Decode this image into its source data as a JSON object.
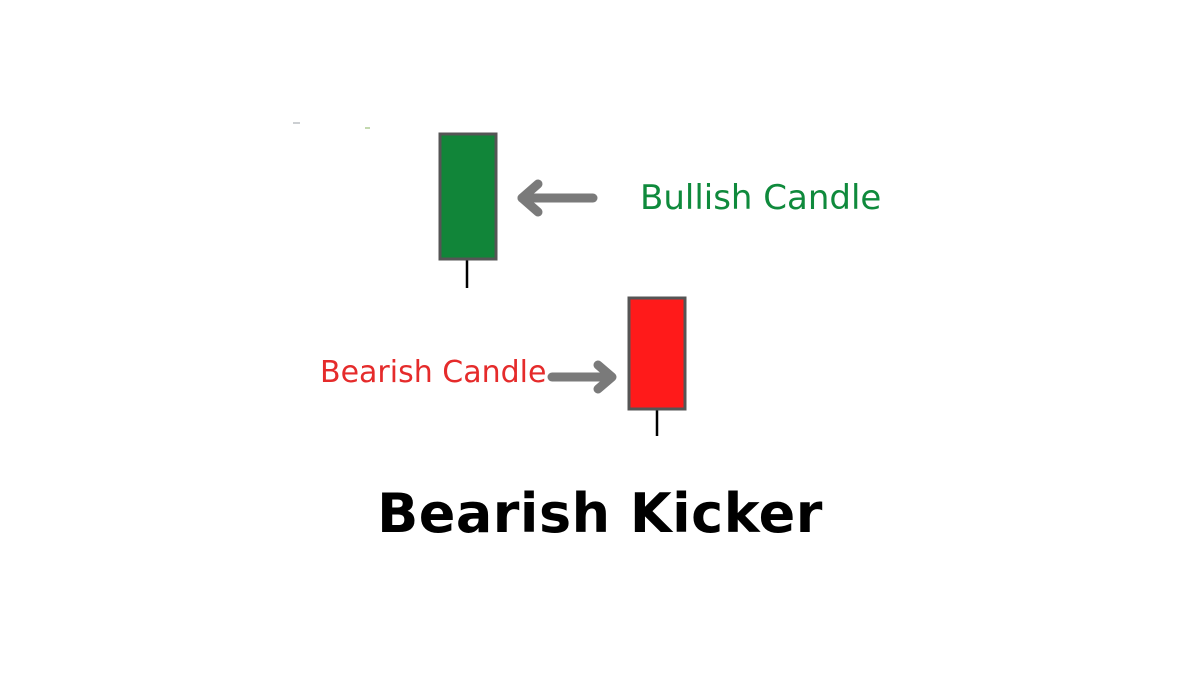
{
  "diagram": {
    "title": "Bearish Kicker",
    "bullish": {
      "label": "Bullish Candle",
      "body_color": "#118539",
      "label_color": "#0f8a3c",
      "arrow_icon": "arrow-left-icon"
    },
    "bearish": {
      "label": "Bearish Candle",
      "body_color": "#ff1a1a",
      "label_color": "#e52b2b",
      "arrow_icon": "arrow-right-icon"
    },
    "colors": {
      "candle_border": "#555555",
      "arrow": "#7a7a7a",
      "wick": "#000000"
    }
  }
}
